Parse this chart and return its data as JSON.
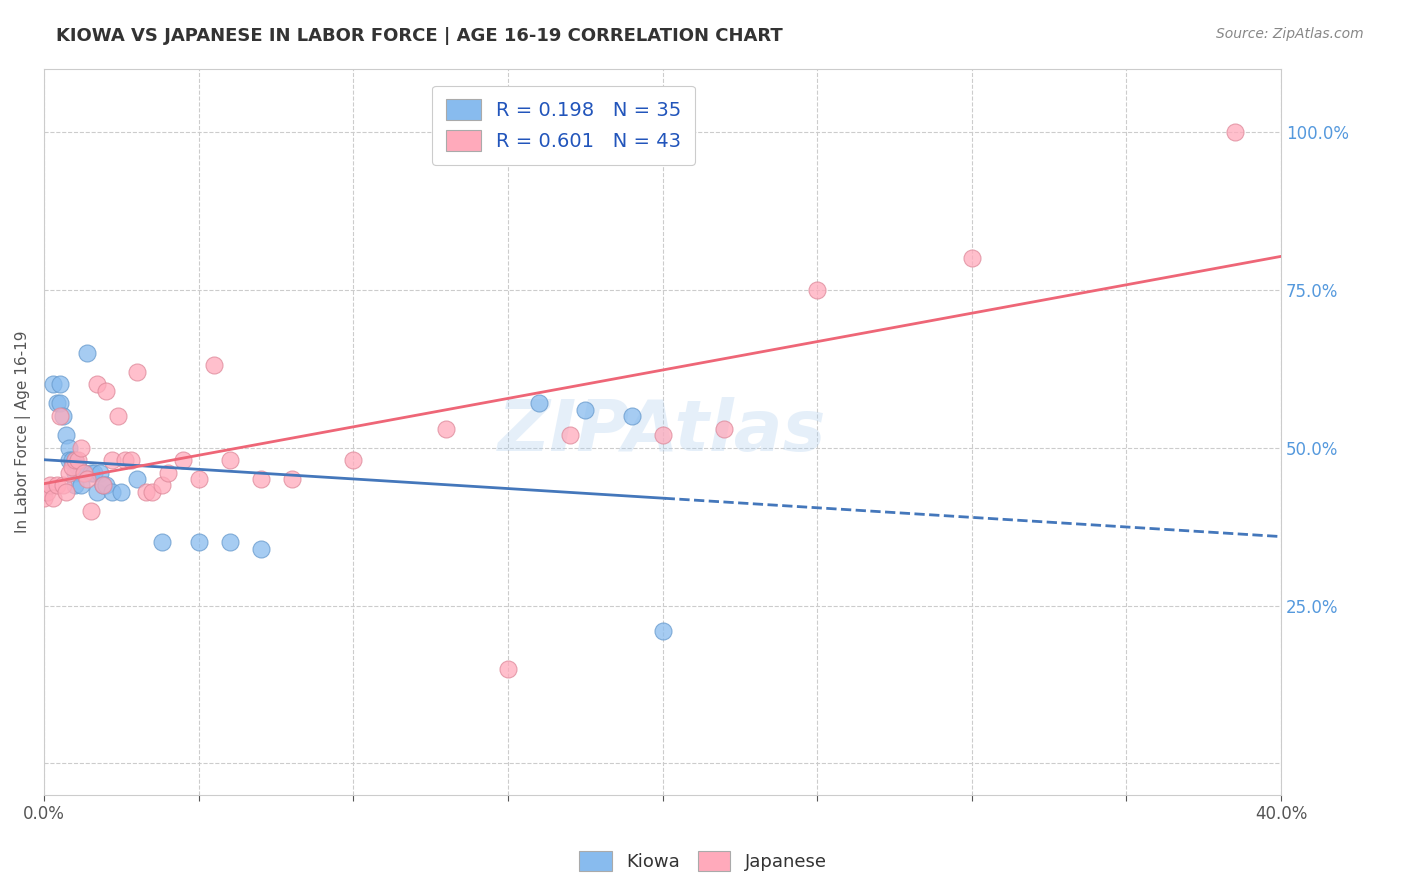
{
  "title": "KIOWA VS JAPANESE IN LABOR FORCE | AGE 16-19 CORRELATION CHART",
  "source_text": "Source: ZipAtlas.com",
  "ylabel": "In Labor Force | Age 16-19",
  "xlim": [
    0.0,
    0.4
  ],
  "ylim": [
    -0.05,
    1.1
  ],
  "x_ticks": [
    0.0,
    0.05,
    0.1,
    0.15,
    0.2,
    0.25,
    0.3,
    0.35,
    0.4
  ],
  "x_tick_labels": [
    "0.0%",
    "",
    "",
    "",
    "",
    "",
    "",
    "",
    "40.0%"
  ],
  "y_ticks": [
    0.0,
    0.25,
    0.5,
    0.75,
    1.0
  ],
  "y_tick_labels_right": [
    "",
    "25.0%",
    "50.0%",
    "75.0%",
    "100.0%"
  ],
  "kiowa_color": "#88BBEE",
  "japanese_color": "#FFAABB",
  "kiowa_edge_color": "#6699CC",
  "japanese_edge_color": "#DD8899",
  "line_kiowa_color": "#4477BB",
  "line_japanese_color": "#EE6677",
  "kiowa_R": 0.198,
  "kiowa_N": 35,
  "japanese_R": 0.601,
  "japanese_N": 43,
  "watermark": "ZIPAtlas",
  "kiowa_x": [
    0.0,
    0.003,
    0.004,
    0.005,
    0.005,
    0.006,
    0.007,
    0.008,
    0.008,
    0.009,
    0.01,
    0.01,
    0.01,
    0.011,
    0.012,
    0.012,
    0.013,
    0.014,
    0.015,
    0.016,
    0.017,
    0.018,
    0.019,
    0.02,
    0.022,
    0.025,
    0.03,
    0.038,
    0.05,
    0.06,
    0.07,
    0.16,
    0.175,
    0.19,
    0.2
  ],
  "kiowa_y": [
    0.43,
    0.6,
    0.57,
    0.6,
    0.57,
    0.55,
    0.52,
    0.5,
    0.48,
    0.48,
    0.48,
    0.46,
    0.44,
    0.47,
    0.46,
    0.44,
    0.46,
    0.65,
    0.46,
    0.46,
    0.43,
    0.46,
    0.44,
    0.44,
    0.43,
    0.43,
    0.45,
    0.35,
    0.35,
    0.35,
    0.34,
    0.57,
    0.56,
    0.55,
    0.21
  ],
  "japanese_x": [
    0.0,
    0.001,
    0.002,
    0.003,
    0.004,
    0.005,
    0.006,
    0.007,
    0.008,
    0.009,
    0.01,
    0.011,
    0.012,
    0.013,
    0.014,
    0.015,
    0.017,
    0.019,
    0.02,
    0.022,
    0.024,
    0.026,
    0.028,
    0.03,
    0.033,
    0.035,
    0.038,
    0.04,
    0.045,
    0.05,
    0.055,
    0.06,
    0.07,
    0.08,
    0.1,
    0.13,
    0.15,
    0.17,
    0.2,
    0.22,
    0.25,
    0.3,
    0.385
  ],
  "japanese_y": [
    0.42,
    0.43,
    0.44,
    0.42,
    0.44,
    0.55,
    0.44,
    0.43,
    0.46,
    0.47,
    0.48,
    0.48,
    0.5,
    0.46,
    0.45,
    0.4,
    0.6,
    0.44,
    0.59,
    0.48,
    0.55,
    0.48,
    0.48,
    0.62,
    0.43,
    0.43,
    0.44,
    0.46,
    0.48,
    0.45,
    0.63,
    0.48,
    0.45,
    0.45,
    0.48,
    0.53,
    0.15,
    0.52,
    0.52,
    0.53,
    0.75,
    0.8,
    1.0
  ],
  "grid_color": "#CCCCCC",
  "grid_style": "--",
  "spine_color": "#CCCCCC",
  "tick_color_x": "#555555",
  "tick_color_y": "#5599DD",
  "title_color": "#333333",
  "source_color": "#888888",
  "ylabel_color": "#555555",
  "legend_label_color": "#2255BB",
  "watermark_color": "#AACCEE"
}
